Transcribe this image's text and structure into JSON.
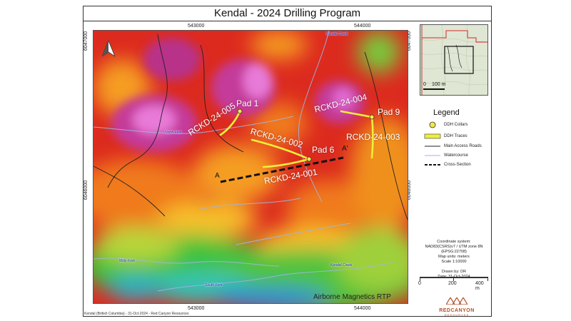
{
  "title": "Kendal - 2024 Drilling Program",
  "coords": {
    "top_x": [
      "543000",
      "544000"
    ],
    "bottom_x": [
      "543000",
      "544000"
    ],
    "left_y": [
      "6047000",
      "6046000"
    ],
    "right_y": [
      "6047000",
      "6046000"
    ]
  },
  "pads": [
    {
      "label": "Pad 1"
    },
    {
      "label": "Pad 6"
    },
    {
      "label": "Pad 9"
    }
  ],
  "holes": [
    {
      "label": "RCKD-24-005"
    },
    {
      "label": "RCKD-24-004"
    },
    {
      "label": "RCKD-24-002"
    },
    {
      "label": "RCKD-24-003"
    },
    {
      "label": "RCKD-24-001"
    }
  ],
  "section": {
    "start": "A",
    "end": "A'"
  },
  "watercourses": [
    "Kendal Creek",
    "North Fork",
    "Moly Fork",
    "South Fork",
    "Kendal Creek"
  ],
  "map_layer_label": "Airborne Magnetics RTP",
  "inset": {
    "scale_zero": "0",
    "scale_label": "100 m"
  },
  "legend": {
    "title": "Legend",
    "items": [
      "DDH Collars",
      "DDH Traces",
      "Main Access Roads",
      "Watercourse",
      "Cross-Section"
    ]
  },
  "info": {
    "coordinate_lines": [
      "Coordinate system:",
      "NAD83(CSRS)v7 / UTM zone 8N",
      "(EPSG:22708)",
      "Map units: meters",
      "Scale 1:10000"
    ],
    "drawn_lines": [
      "Drawn by: DR",
      "Date: 31-Oct-2024"
    ]
  },
  "scale_bar": {
    "labels": [
      "0",
      "200",
      "400 m"
    ]
  },
  "logo": {
    "name": "REDCANYON",
    "sub": "RESOURCES"
  },
  "footer": "Kendal (British Columbia) - 31-Oct-2024 - Red Canyon Resources",
  "colors": {
    "collar": "#f2e84a",
    "trace": "#f0ee3a",
    "road": "#222222",
    "water": "#9fb6e0",
    "section": "#111111",
    "logo": "#b24e25"
  }
}
